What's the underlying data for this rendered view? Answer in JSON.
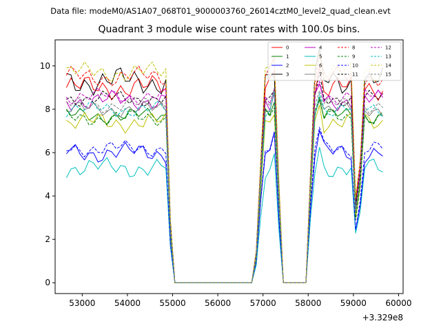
{
  "page_header": "Data file: modeM0/AS1A07_068T01_9000003760_26014cztM0_level2_quad_clean.evt",
  "chart_data": {
    "type": "line",
    "title": "Quadrant 3 module wise count rates with 100.0s bins.",
    "xlabel": "",
    "ylabel": "",
    "x_offset_label": "+3.329e8",
    "xlim": [
      52400,
      60100
    ],
    "ylim": [
      -0.5,
      11.2
    ],
    "x_ticks": [
      53000,
      54000,
      55000,
      56000,
      57000,
      58000,
      59000,
      60000
    ],
    "x_tick_labels": [
      "53000",
      "54000",
      "55000",
      "56000",
      "57000",
      "58000",
      "59000",
      "60000"
    ],
    "y_ticks": [
      0,
      2,
      4,
      6,
      8,
      10
    ],
    "y_tick_labels": [
      "0",
      "2",
      "4",
      "6",
      "8",
      "10"
    ],
    "grid": false,
    "legend_position": "top-right",
    "legend_columns": 4,
    "series": [
      {
        "name": "0",
        "color": "#ff0000",
        "dashed": false,
        "base": 9.0,
        "amp": 0.6
      },
      {
        "name": "1",
        "color": "#008000",
        "dashed": false,
        "base": 7.7,
        "amp": 0.4
      },
      {
        "name": "2",
        "color": "#0000ff",
        "dashed": false,
        "base": 6.0,
        "amp": 0.5
      },
      {
        "name": "3",
        "color": "#000000",
        "dashed": false,
        "base": 9.3,
        "amp": 0.7
      },
      {
        "name": "4",
        "color": "#bf00bf",
        "dashed": false,
        "base": 8.4,
        "amp": 0.5
      },
      {
        "name": "5",
        "color": "#00bfbf",
        "dashed": false,
        "base": 5.3,
        "amp": 0.5
      },
      {
        "name": "6",
        "color": "#bfbf00",
        "dashed": false,
        "base": 7.4,
        "amp": 0.5
      },
      {
        "name": "7",
        "color": "#808080",
        "dashed": false,
        "base": 8.0,
        "amp": 0.4
      },
      {
        "name": "8",
        "color": "#ff0000",
        "dashed": true,
        "base": 9.5,
        "amp": 0.5
      },
      {
        "name": "9",
        "color": "#008000",
        "dashed": true,
        "base": 7.6,
        "amp": 0.4
      },
      {
        "name": "10",
        "color": "#0000ff",
        "dashed": true,
        "base": 6.2,
        "amp": 0.4
      },
      {
        "name": "11",
        "color": "#000000",
        "dashed": true,
        "base": 8.5,
        "amp": 0.4
      },
      {
        "name": "12",
        "color": "#bf00bf",
        "dashed": true,
        "base": 8.6,
        "amp": 0.4
      },
      {
        "name": "13",
        "color": "#00bfbf",
        "dashed": true,
        "base": 8.0,
        "amp": 0.4
      },
      {
        "name": "14",
        "color": "#bfbf00",
        "dashed": true,
        "base": 9.7,
        "amp": 0.5
      },
      {
        "name": "15",
        "color": "#808080",
        "dashed": true,
        "base": 8.2,
        "amp": 0.4
      }
    ]
  }
}
